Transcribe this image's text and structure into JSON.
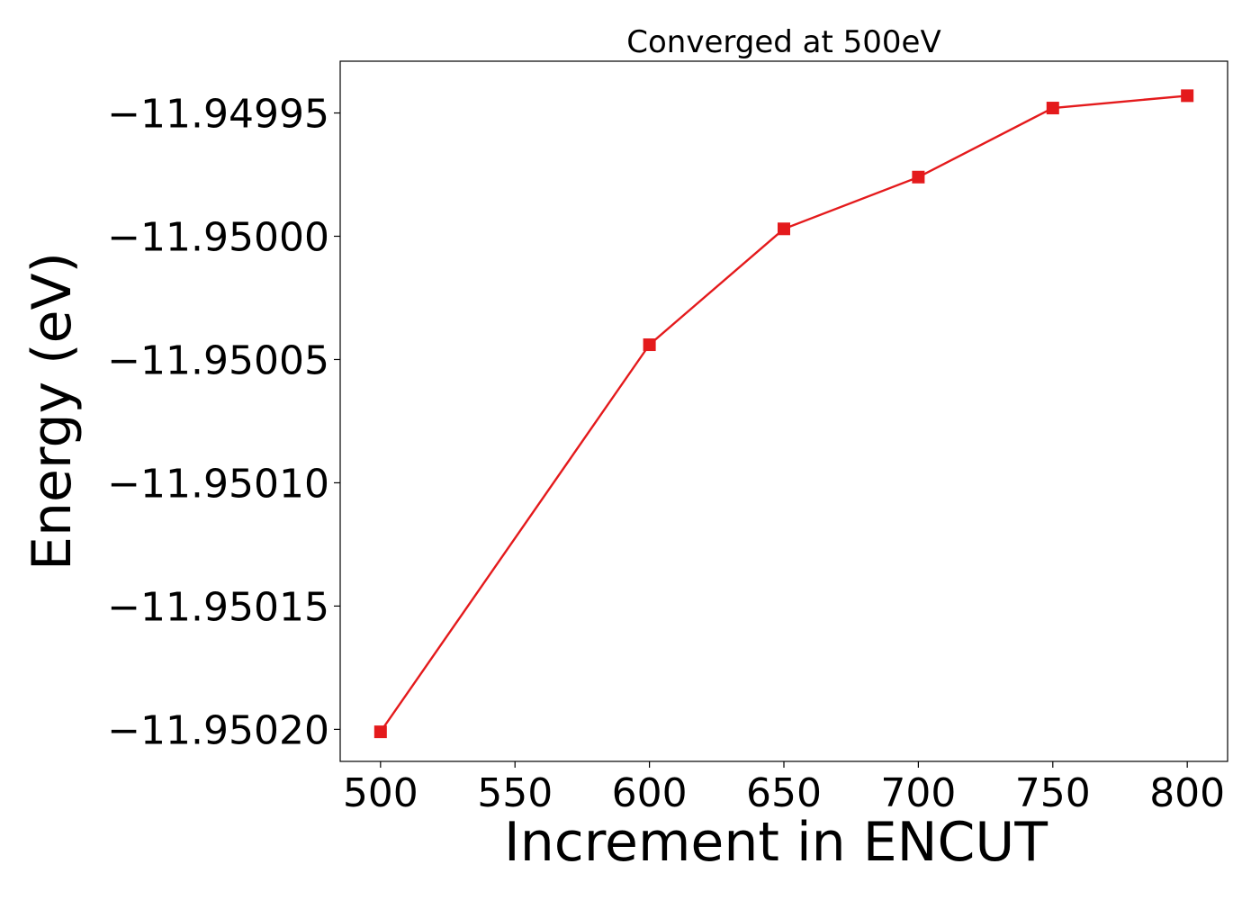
{
  "chart_data": {
    "type": "line",
    "title": "Converged at 500eV",
    "xlabel": "Increment in ENCUT",
    "ylabel": "Energy (eV)",
    "xlim": [
      485,
      815
    ],
    "ylim": [
      -11.950213,
      -11.949929
    ],
    "x_ticks": [
      500,
      550,
      600,
      650,
      700,
      750,
      800
    ],
    "x_tick_labels": [
      "500",
      "550",
      "600",
      "650",
      "700",
      "750",
      "800"
    ],
    "y_ticks": [
      -11.9502,
      -11.95015,
      -11.9501,
      -11.95005,
      -11.95,
      -11.94995
    ],
    "y_tick_labels": [
      "−11.95020",
      "−11.95015",
      "−11.95010",
      "−11.95005",
      "−11.95000",
      "−11.94995"
    ],
    "grid": false,
    "series": [
      {
        "color": "#e41a1c",
        "marker": "square",
        "x": [
          500,
          600,
          650,
          700,
          750,
          800
        ],
        "y": [
          -11.950201,
          -11.950044,
          -11.949997,
          -11.949976,
          -11.949948,
          -11.949943
        ]
      }
    ]
  }
}
